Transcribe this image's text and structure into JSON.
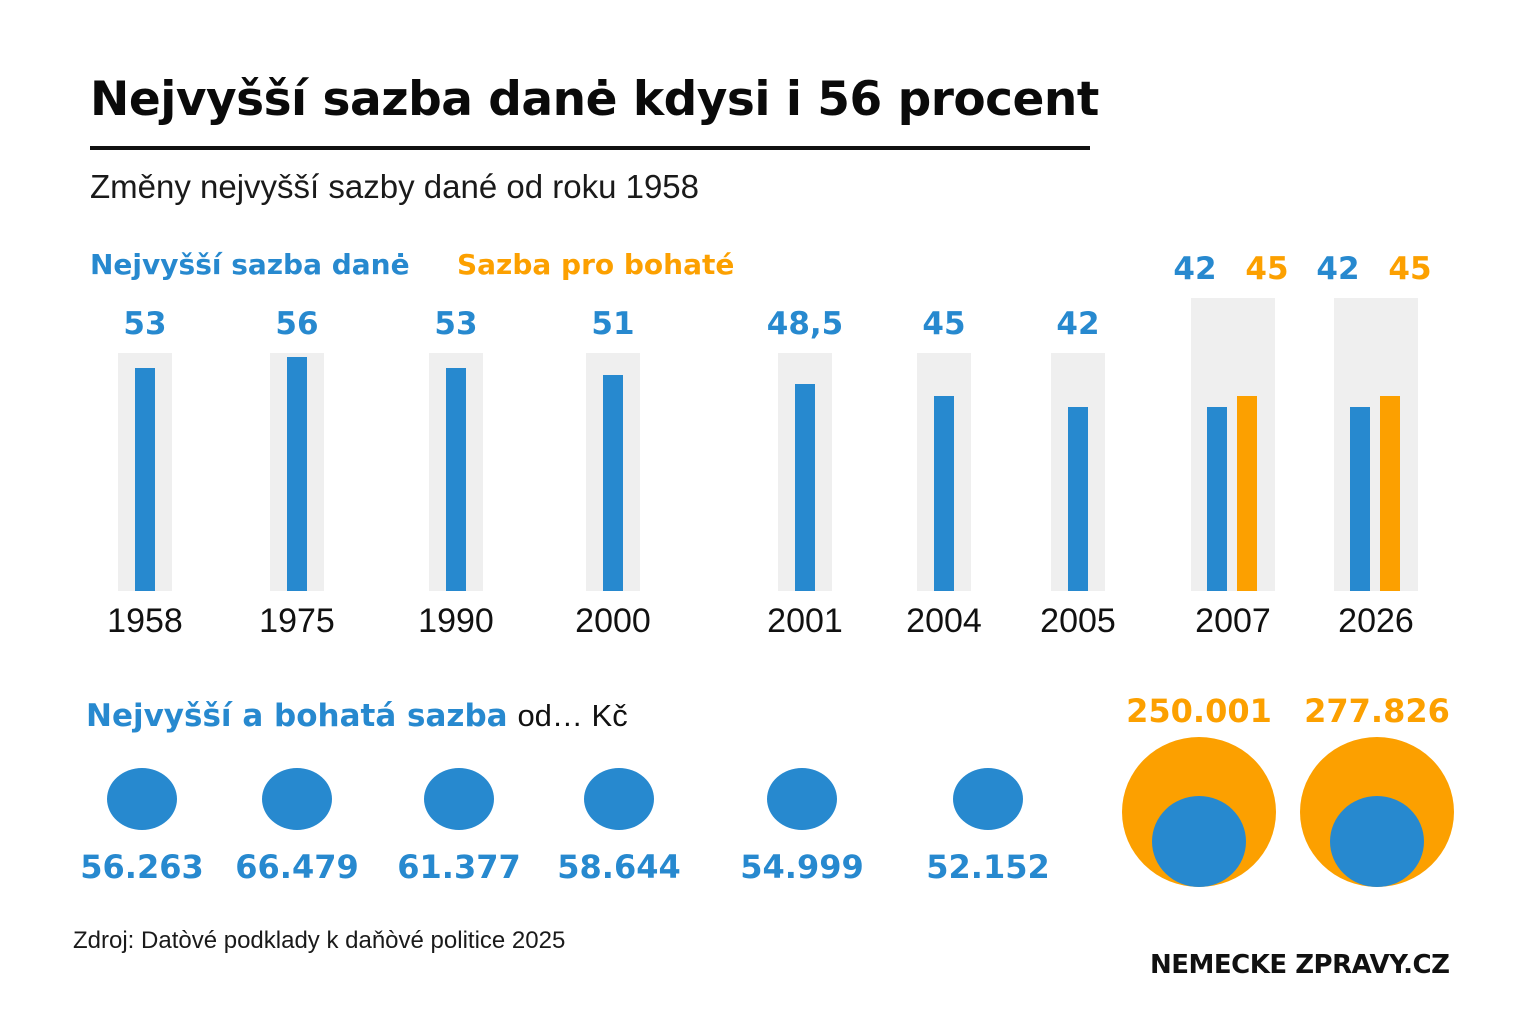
{
  "title": "Nejvyšší sazba danė kdysi i 56 procent",
  "subtitle": "Změny nejvyšší sazby dané od roku 1958",
  "colors": {
    "blue": "#2789cf",
    "orange": "#fca000",
    "track": "#efefef",
    "text": "#111111"
  },
  "legend": {
    "top_rate": "Nejvyšší sazba danė",
    "rich_rate": "Sazba pro bohaté"
  },
  "chart_data": [
    {
      "type": "bar",
      "title": "Změny nejvyšší sazby dané od roku 1958",
      "xlabel": "",
      "ylabel": "",
      "categories": [
        "1958",
        "1975",
        "1990",
        "2000",
        "2001",
        "2004",
        "2005",
        "2007",
        "2026"
      ],
      "series": [
        {
          "name": "Nejvyšší sazba danė",
          "color": "#2789cf",
          "values": [
            53,
            56,
            53,
            51,
            48.5,
            45,
            42,
            42,
            42
          ],
          "labels": [
            "53",
            "56",
            "53",
            "51",
            "48,5",
            "45",
            "42",
            "42",
            "42"
          ]
        },
        {
          "name": "Sazba pro bohaté",
          "color": "#fca000",
          "values": [
            null,
            null,
            null,
            null,
            null,
            null,
            null,
            45,
            45
          ],
          "labels": [
            "",
            "",
            "",
            "",
            "",
            "",
            "",
            "45",
            "45"
          ]
        }
      ],
      "legend": "top-left",
      "grid": false
    },
    {
      "type": "scatter",
      "title": "Nejvyšší a bohatá sazba od... Kč",
      "title_bold": "Nejvyšší a bohatá sazba",
      "title_rest": "od… Kč",
      "categories": [
        "1958",
        "1975",
        "1990",
        "2000",
        "2001",
        "2004",
        "2005",
        "2007",
        "2026"
      ],
      "series": [
        {
          "name": "Nejvyšší sazba od (Kč)",
          "color": "#2789cf",
          "values": [
            56263,
            66479,
            61377,
            58644,
            54999,
            52152,
            null,
            null,
            null
          ],
          "labels": [
            "56.263",
            "66.479",
            "61.377",
            "58.644",
            "54.999",
            "52.152",
            "",
            "",
            ""
          ]
        },
        {
          "name": "Sazba pro bohaté od (Kč)",
          "color": "#fca000",
          "values": [
            null,
            null,
            null,
            null,
            null,
            null,
            null,
            250001,
            277826
          ],
          "labels": [
            "",
            "",
            "",
            "",
            "",
            "",
            "",
            "250.001",
            "277.826"
          ]
        }
      ]
    }
  ],
  "footer": {
    "source": "Zdroj: Datòvé podklady k daňòvé politice 2025",
    "brand": "NEMECKE ZPRAVY.CZ"
  }
}
